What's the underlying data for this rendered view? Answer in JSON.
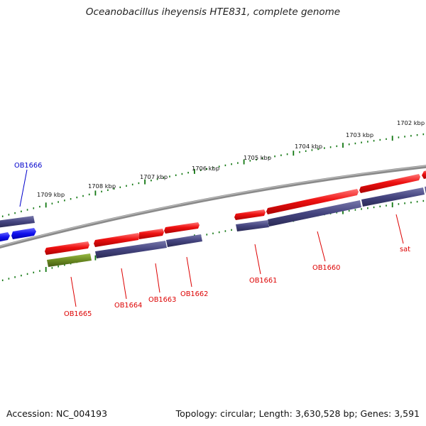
{
  "title": "Oceanobacillus iheyensis HTE831, complete genome",
  "footer": {
    "accession": "Accession: NC_004193",
    "summary": "Topology: circular; Length: 3,630,528 bp; Genes: 3,591"
  },
  "colors": {
    "backbone": "#808080",
    "tick": "#117711",
    "forward_gene": "#ee1111",
    "cds_track": "#44447f",
    "blue_gene": "#1111ee",
    "green_gene": "#6a8a22",
    "label_red": "#dd0000",
    "label_blue": "#0000cc"
  },
  "tick_labels": [
    "1702 kbp",
    "1703 kbp",
    "1704 kbp",
    "1705 kbp",
    "1706 kbp",
    "1707 kbp",
    "1708 kbp",
    "1709 kbp"
  ],
  "gene_labels": [
    {
      "text": "OB1666",
      "color": "label_blue"
    },
    {
      "text": "OB1665",
      "color": "label_red"
    },
    {
      "text": "OB1664",
      "color": "label_red"
    },
    {
      "text": "OB1663",
      "color": "label_red"
    },
    {
      "text": "OB1662",
      "color": "label_red"
    },
    {
      "text": "OB1661",
      "color": "label_red"
    },
    {
      "text": "OB1660",
      "color": "label_red"
    },
    {
      "text": "sat",
      "color": "label_red"
    }
  ]
}
